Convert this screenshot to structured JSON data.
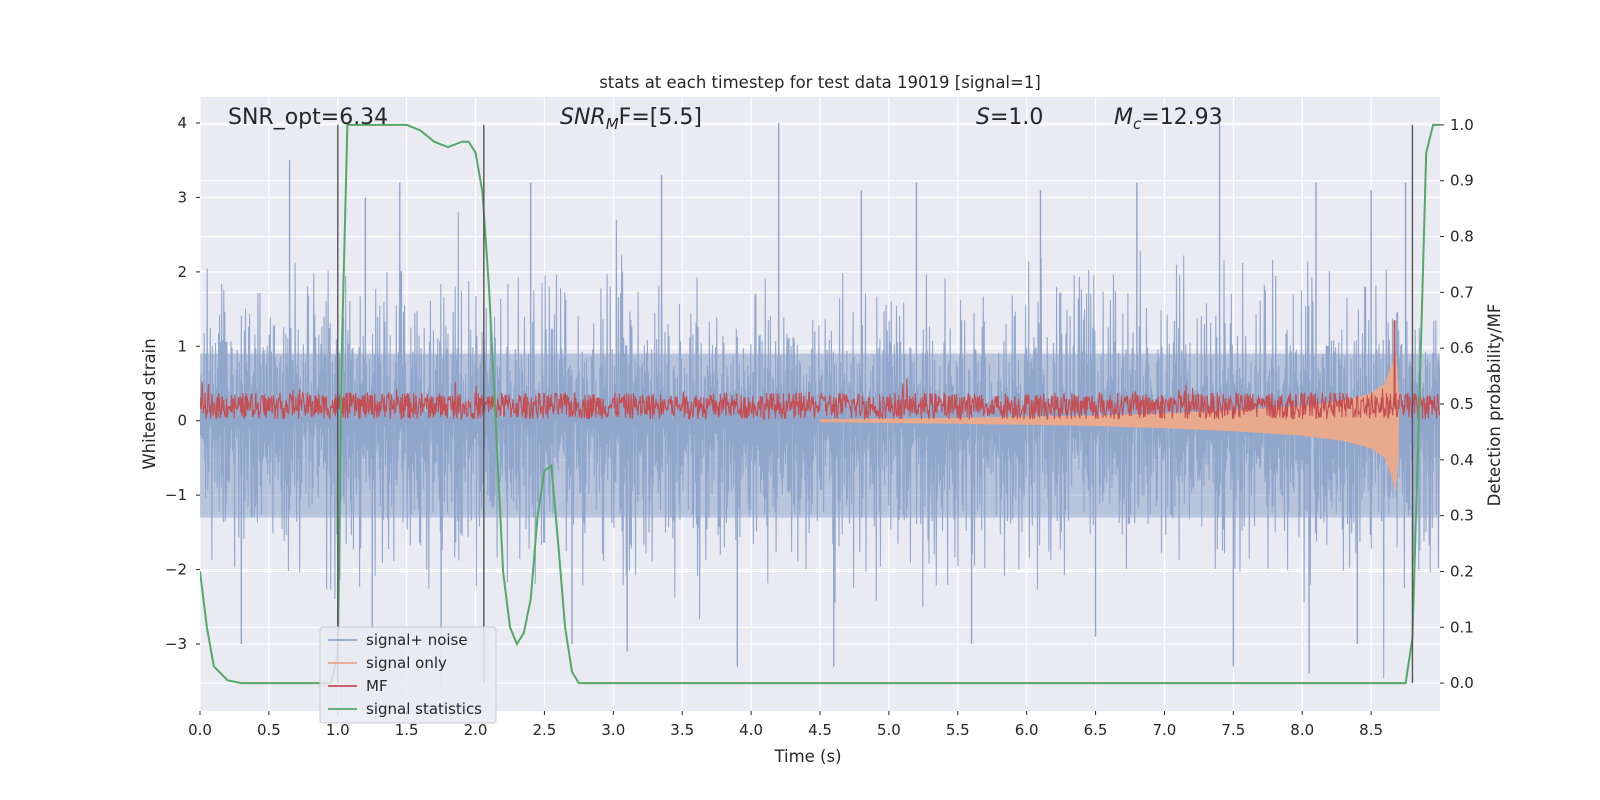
{
  "chart_data": {
    "type": "line",
    "title": "stats at each timestep for test data 19019 [signal=1]",
    "xlabel": "Time (s)",
    "ylabel": "Whitened strain",
    "y2label": "Detection probability/MF",
    "xlim": [
      0.0,
      9.0
    ],
    "ylim": [
      -3.9,
      4.35
    ],
    "y2lim": [
      -0.05,
      1.05
    ],
    "x_ticks": [
      0.0,
      0.5,
      1.0,
      1.5,
      2.0,
      2.5,
      3.0,
      3.5,
      4.0,
      4.5,
      5.0,
      5.5,
      6.0,
      6.5,
      7.0,
      7.5,
      8.0,
      8.5
    ],
    "x_tick_labels": [
      "0.0",
      "0.5",
      "1.0",
      "1.5",
      "2.0",
      "2.5",
      "3.0",
      "3.5",
      "4.0",
      "4.5",
      "5.0",
      "5.5",
      "6.0",
      "6.5",
      "7.0",
      "7.5",
      "8.0",
      "8.5"
    ],
    "y_ticks": [
      4,
      3,
      2,
      1,
      0,
      -1,
      -2,
      -3
    ],
    "y_tick_labels": [
      "4",
      "3",
      "2",
      "1",
      "0",
      "−1",
      "−2",
      "−3"
    ],
    "y2_ticks": [
      1.0,
      0.9,
      0.8,
      0.7,
      0.6,
      0.5,
      0.4,
      0.3,
      0.2,
      0.1,
      0.0
    ],
    "y2_tick_labels": [
      "1.0",
      "0.9",
      "0.8",
      "0.7",
      "0.6",
      "0.5",
      "0.4",
      "0.3",
      "0.2",
      "0.1",
      "0.0"
    ],
    "annotations": {
      "snr_opt": "SNR_opt=6.34",
      "snr_mf_base": "SNR",
      "snr_mf_sub": "M",
      "snr_mf_tail": "F=[5.5]",
      "s_base": "S",
      "s_tail": "=1.0",
      "mc_base": "M",
      "mc_sub": "c",
      "mc_tail": "=12.93"
    },
    "vertical_markers_s": [
      1.0,
      2.06,
      8.8
    ],
    "legend": {
      "placement": "lower-left",
      "entries": [
        {
          "label": "signal+ noise",
          "color": "#8ea4ca"
        },
        {
          "label": "signal only",
          "color": "#e8a98c"
        },
        {
          "label": "MF",
          "color": "#c44e52"
        },
        {
          "label": "signal statistics",
          "color": "#55a868"
        }
      ]
    },
    "series": [
      {
        "name": "signal+ noise",
        "axis": "left",
        "style": "dense-noise",
        "color": "#8ea4ca",
        "envelope_x": [
          0.0,
          9.0
        ],
        "typical_upper": 1.8,
        "typical_lower": -1.9,
        "extreme_peaks": [
          [
            0.65,
            3.5
          ],
          [
            1.2,
            3.0
          ],
          [
            1.45,
            3.2
          ],
          [
            2.4,
            3.2
          ],
          [
            3.35,
            3.3
          ],
          [
            4.2,
            4.0
          ],
          [
            4.8,
            3.1
          ],
          [
            5.2,
            3.2
          ],
          [
            6.1,
            3.1
          ],
          [
            6.8,
            3.2
          ],
          [
            7.4,
            4.0
          ],
          [
            8.1,
            3.2
          ],
          [
            8.5,
            3.1
          ],
          [
            8.75,
            3.2
          ],
          [
            0.3,
            -3.0
          ],
          [
            1.25,
            -2.8
          ],
          [
            2.7,
            -3.0
          ],
          [
            3.1,
            -3.1
          ],
          [
            3.9,
            -3.3
          ],
          [
            4.6,
            -3.3
          ],
          [
            5.6,
            -3.0
          ],
          [
            6.5,
            -2.9
          ],
          [
            7.5,
            -3.3
          ],
          [
            8.05,
            -3.4
          ],
          [
            8.4,
            -3.0
          ],
          [
            1.75,
            -3.6
          ]
        ]
      },
      {
        "name": "signal only",
        "axis": "left",
        "style": "chirp",
        "color": "#e8a98c",
        "x": [
          4.5,
          5.5,
          6.5,
          7.0,
          7.5,
          8.0,
          8.3,
          8.5,
          8.6,
          8.65,
          8.68,
          8.7
        ],
        "amplitude": [
          0.02,
          0.04,
          0.07,
          0.1,
          0.14,
          0.2,
          0.27,
          0.37,
          0.5,
          0.75,
          0.95,
          0.4
        ]
      },
      {
        "name": "MF",
        "axis": "left",
        "style": "dense-noise",
        "color": "#c44e52",
        "baseline": 0.2,
        "typical_upper": 0.45,
        "typical_lower": 0.05,
        "spike": [
          8.67,
          1.35
        ]
      },
      {
        "name": "signal statistics",
        "axis": "right",
        "color": "#55a868",
        "x": [
          0.0,
          0.05,
          0.1,
          0.2,
          0.3,
          0.4,
          0.5,
          0.6,
          0.7,
          0.8,
          0.9,
          0.95,
          1.0,
          1.03,
          1.07,
          1.1,
          1.2,
          1.3,
          1.4,
          1.5,
          1.6,
          1.7,
          1.8,
          1.9,
          1.95,
          2.0,
          2.05,
          2.1,
          2.15,
          2.2,
          2.25,
          2.3,
          2.35,
          2.4,
          2.45,
          2.5,
          2.55,
          2.6,
          2.65,
          2.7,
          2.75,
          2.8,
          2.9,
          3.0,
          3.5,
          4.0,
          5.0,
          6.0,
          7.0,
          8.0,
          8.5,
          8.75,
          8.8,
          8.85,
          8.9,
          8.95,
          9.0
        ],
        "y": [
          0.2,
          0.1,
          0.03,
          0.005,
          0.0,
          0.0,
          0.0,
          0.0,
          0.0,
          0.0,
          0.0,
          0.0,
          0.05,
          0.6,
          1.0,
          1.0,
          1.0,
          1.0,
          1.0,
          1.0,
          0.99,
          0.97,
          0.96,
          0.97,
          0.97,
          0.95,
          0.88,
          0.7,
          0.45,
          0.2,
          0.1,
          0.07,
          0.09,
          0.15,
          0.3,
          0.38,
          0.39,
          0.25,
          0.1,
          0.02,
          0.0,
          0.0,
          0.0,
          0.0,
          0.0,
          0.0,
          0.0,
          0.0,
          0.0,
          0.0,
          0.0,
          0.0,
          0.08,
          0.5,
          0.95,
          1.0,
          1.0
        ]
      }
    ]
  }
}
